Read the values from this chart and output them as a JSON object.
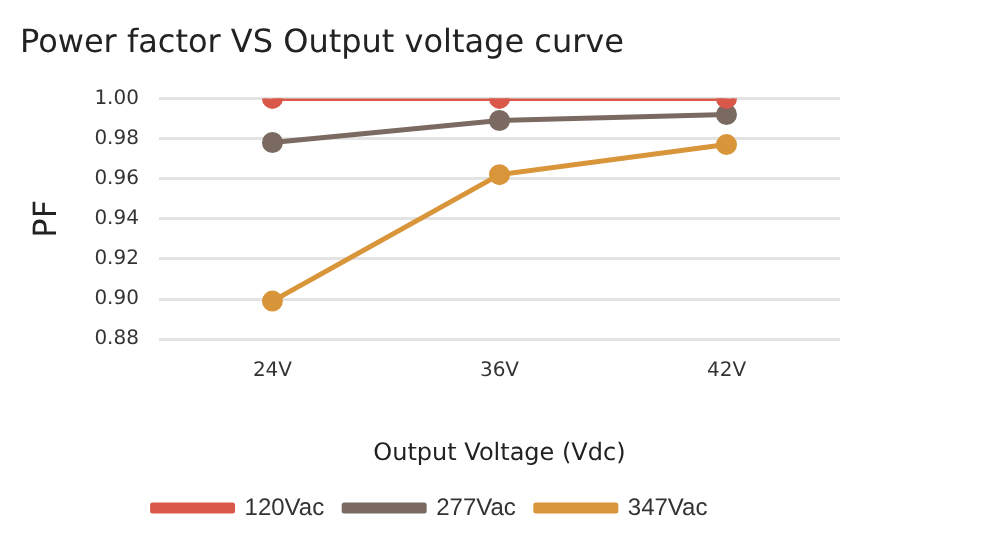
{
  "chart_data": {
    "type": "line",
    "title": "Power factor VS Output voltage curve",
    "xlabel": "Output Voltage (Vdc)",
    "ylabel": "PF",
    "categories": [
      "24V",
      "36V",
      "42V"
    ],
    "series": [
      {
        "name": "120Vac",
        "color": "#d9584a",
        "values": [
          1.0,
          1.0,
          1.0
        ]
      },
      {
        "name": "277Vac",
        "color": "#7a6a62",
        "values": [
          0.978,
          0.989,
          0.992
        ]
      },
      {
        "name": "347Vac",
        "color": "#d9953a",
        "values": [
          0.899,
          0.962,
          0.977
        ]
      }
    ],
    "ylim": [
      0.88,
      1.0
    ],
    "yticks": [
      0.88,
      {
        "value": 0.9,
        "label": "0.90"
      },
      0.92,
      0.94,
      0.96,
      0.98,
      {
        "value": 1.0,
        "label": "1.00"
      }
    ],
    "grid": "y",
    "legend": "bottom",
    "marker": "circle",
    "line_style": "solid"
  }
}
